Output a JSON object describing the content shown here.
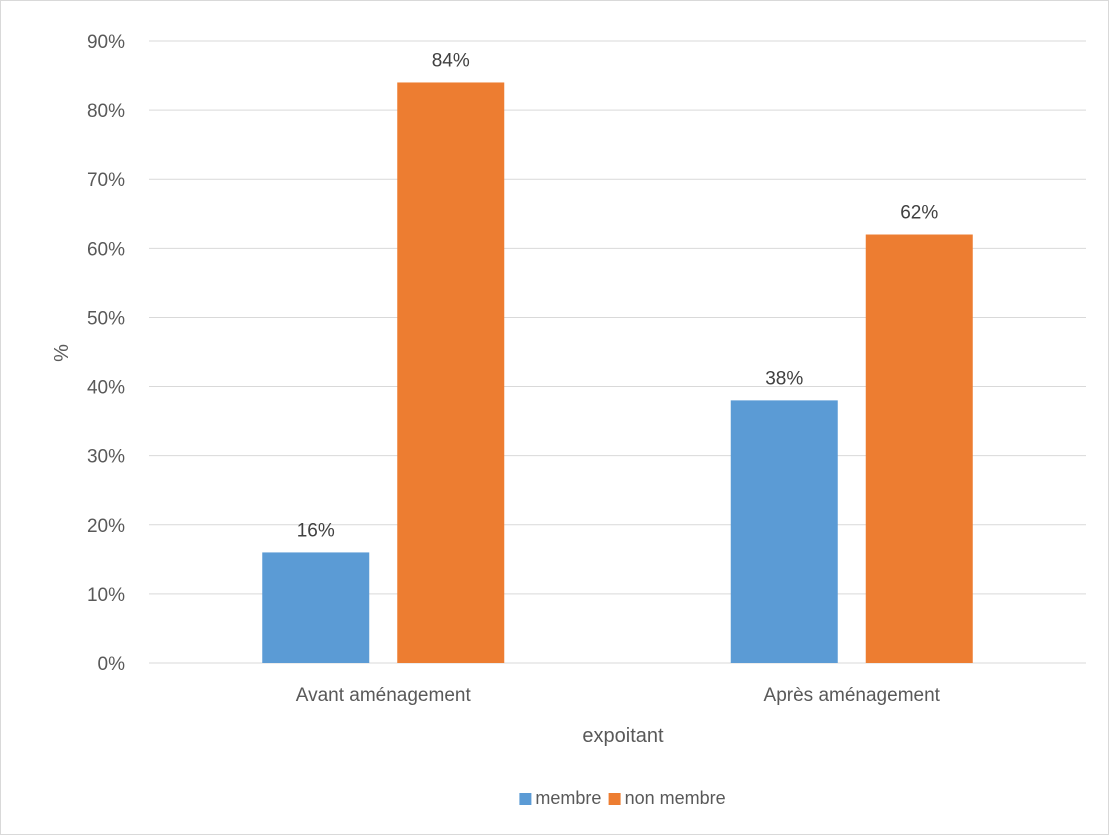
{
  "chart_data": {
    "type": "bar",
    "title": "",
    "xlabel": "expoitant",
    "ylabel": "%",
    "categories": [
      "Avant aménagement",
      "Après aménagement"
    ],
    "series": [
      {
        "name": "membre",
        "values": [
          16,
          38
        ],
        "labels": [
          "16%",
          "38%"
        ],
        "color": "#5b9bd5"
      },
      {
        "name": "non membre",
        "values": [
          84,
          62
        ],
        "labels": [
          "84%",
          "62%"
        ],
        "color": "#ed7d31"
      }
    ],
    "ylim": [
      0,
      90
    ],
    "yticks": [
      0,
      10,
      20,
      30,
      40,
      50,
      60,
      70,
      80,
      90
    ],
    "ytick_labels": [
      "0%",
      "10%",
      "20%",
      "30%",
      "40%",
      "50%",
      "60%",
      "70%",
      "80%",
      "90%"
    ],
    "grid": true,
    "legend_position": "bottom"
  }
}
